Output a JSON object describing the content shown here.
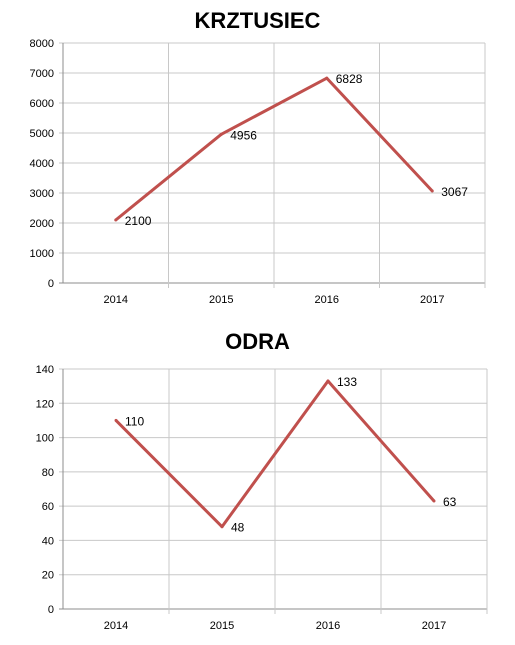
{
  "chart_data": [
    {
      "type": "line",
      "title": "KRZTUSIEC",
      "categories": [
        "2014",
        "2015",
        "2016",
        "2017"
      ],
      "series": [
        {
          "values": [
            2100,
            4956,
            6828,
            3067
          ]
        }
      ],
      "data_labels": [
        "2100",
        "4956",
        "6828",
        "3067"
      ],
      "ylim": [
        0,
        8000
      ],
      "yticks": [
        0,
        1000,
        2000,
        3000,
        4000,
        5000,
        6000,
        7000,
        8000
      ],
      "xlabel": "",
      "ylabel": "",
      "grid": true,
      "legend": "none",
      "line_color": "#c0504d"
    },
    {
      "type": "line",
      "title": "ODRA",
      "categories": [
        "2014",
        "2015",
        "2016",
        "2017"
      ],
      "series": [
        {
          "values": [
            110,
            48,
            133,
            63
          ]
        }
      ],
      "data_labels": [
        "110",
        "48",
        "133",
        "63"
      ],
      "ylim": [
        0,
        140
      ],
      "yticks": [
        0,
        20,
        40,
        60,
        80,
        100,
        120,
        140
      ],
      "xlabel": "",
      "ylabel": "",
      "grid": true,
      "legend": "none",
      "line_color": "#c0504d"
    }
  ],
  "style": {
    "grid_color": "#c8c8c8",
    "axis_color": "#8c8c8c"
  }
}
